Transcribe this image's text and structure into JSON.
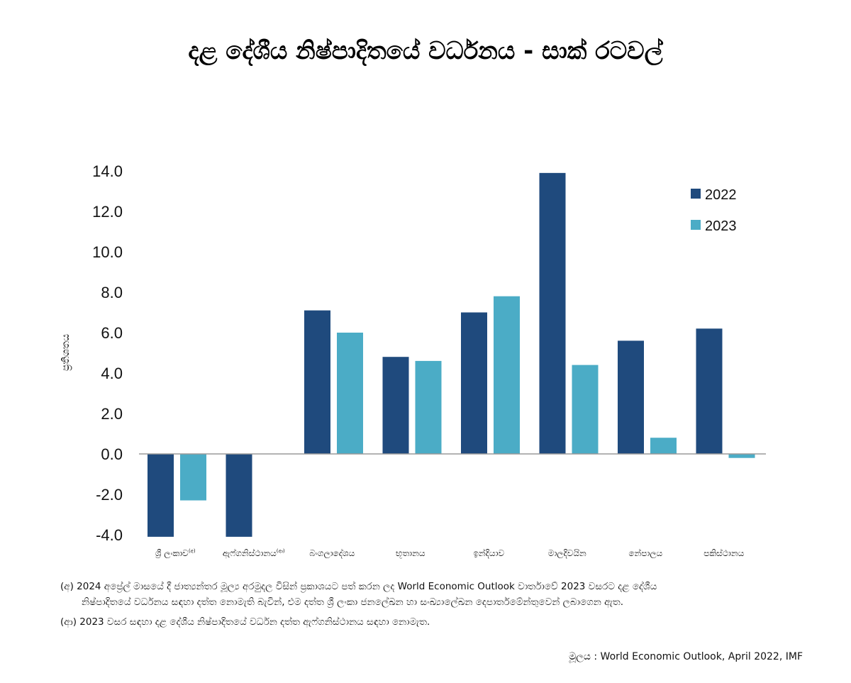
{
  "chart_data": {
    "type": "bar",
    "title": "දළ දේශීය නිෂ්පාදිතයේ වර්ධනය - සාක් රටවල්",
    "ylabel": "ප්‍රතිශතය",
    "ylim": [
      -4.0,
      14.0
    ],
    "yticks": [
      "14.0",
      "12.0",
      "10.0",
      "8.0",
      "6.0",
      "4.0",
      "2.0",
      "0.0",
      "-2.0",
      "-4.0"
    ],
    "ytick_values": [
      14,
      12,
      10,
      8,
      6,
      4,
      2,
      0,
      -2,
      -4
    ],
    "categories": [
      {
        "label": "ශ්‍රී ලංකාව",
        "sup": "(අ)"
      },
      {
        "label": "ඇෆ්ගනිස්ථානය",
        "sup": "(ආ)"
      },
      {
        "label": "බංගලාදේශය",
        "sup": ""
      },
      {
        "label": "භූතානය",
        "sup": ""
      },
      {
        "label": "ඉන්දියාව",
        "sup": ""
      },
      {
        "label": "මාලදිවයින",
        "sup": ""
      },
      {
        "label": "නේපාලය",
        "sup": ""
      },
      {
        "label": "පකිස්ථානය",
        "sup": ""
      }
    ],
    "series": [
      {
        "name": "2022",
        "color": "#1f4a7d",
        "values": [
          -4.1,
          -4.1,
          7.1,
          4.8,
          7.0,
          13.9,
          5.6,
          6.2
        ]
      },
      {
        "name": "2023",
        "color": "#4bacc6",
        "values": [
          -2.3,
          null,
          6.0,
          4.6,
          7.8,
          4.4,
          0.8,
          -0.2
        ]
      }
    ],
    "legend": "top-right",
    "grid": false
  },
  "notes": {
    "a_line1": "(අ) 2024 අප්‍රේල් මාසයේ දී ජාත්‍යන්තර මූල්‍ය අරමුදල විසින් ප්‍රකාශයට පත් කරන ලද World Economic Outlook වාර්තාවේ 2023 වසරට දළ දේශීය",
    "a_line2": "නිෂ්පාදිතයේ වර්ධනය සඳහා දත්ත නොමැති බැවින්, එම දත්ත ශ්‍රී ලංකා ජනලේඛන හා සංඛ්‍යාලේඛන දෙපාර්තමේන්තුවෙන් ලබාගෙන ඇත.",
    "b_line": "(ආ) 2023 වසර සඳහා දළ දේශීය නිෂ්පාදිතයේ වර්ධන දත්ත ඇෆ්ගනිස්ථානය සඳහා නොමැත."
  },
  "source": "මූලය : World Economic Outlook, April  2022, IMF"
}
